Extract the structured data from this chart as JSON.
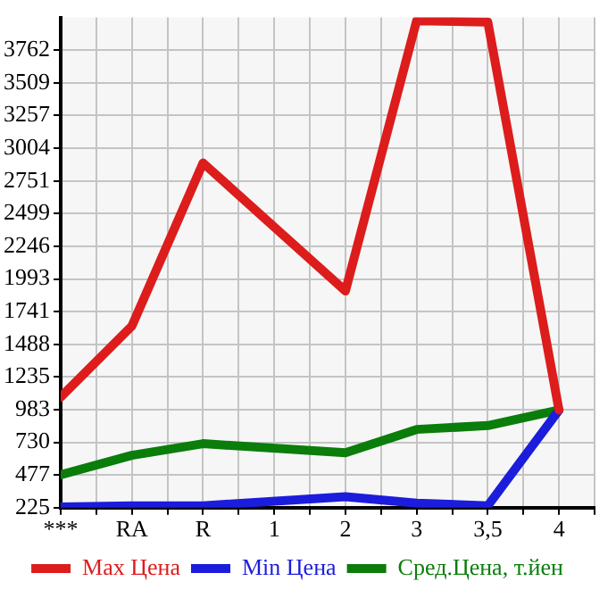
{
  "chart_data": {
    "type": "line",
    "categories": [
      "***",
      "RA",
      "R",
      "1",
      "2",
      "3",
      "3,5",
      "4"
    ],
    "series": [
      {
        "name": "Max Цена",
        "color": "#dd1c1c",
        "values": [
          1080,
          1630,
          2890,
          null,
          1900,
          3990,
          3980,
          980
        ]
      },
      {
        "name": "Min Цена",
        "color": "#1c1cdd",
        "values": [
          230,
          240,
          240,
          null,
          310,
          260,
          240,
          980
        ]
      },
      {
        "name": "Сред.Цена, т.йен",
        "color": "#0a7d0a",
        "values": [
          480,
          630,
          720,
          null,
          650,
          830,
          860,
          980
        ]
      }
    ],
    "ylim": [
      225,
      4015
    ],
    "yticks": [
      225,
      477,
      730,
      983,
      1235,
      1488,
      1741,
      1993,
      2246,
      2499,
      2751,
      3004,
      3257,
      3509,
      3762
    ],
    "grid": true,
    "legend": "bottom",
    "marker": "none",
    "line_style": "solid"
  }
}
